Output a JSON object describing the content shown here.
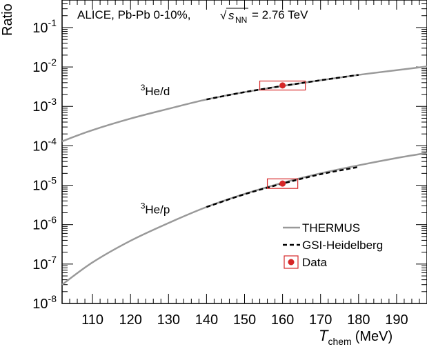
{
  "chart_data": {
    "type": "line",
    "header": {
      "experiment": "ALICE, Pb-Pb 0-10%,",
      "sqrt_symbol": "√",
      "s_letter": "s",
      "s_subscript": "NN",
      "energy": "= 2.76 TeV"
    },
    "xlabel": {
      "main": "T",
      "sub": "chem",
      "unit": "(MeV)"
    },
    "ylabel": "Ratio",
    "xlim": [
      102,
      198
    ],
    "ylim": [
      1e-08,
      0.5
    ],
    "yscale": "log",
    "x_ticks": [
      110,
      120,
      130,
      140,
      150,
      160,
      170,
      180,
      190
    ],
    "y_ticks": [
      {
        "exp": -8,
        "base": "10",
        "power": "-8"
      },
      {
        "exp": -7,
        "base": "10",
        "power": "-7"
      },
      {
        "exp": -6,
        "base": "10",
        "power": "-6"
      },
      {
        "exp": -5,
        "base": "10",
        "power": "-5"
      },
      {
        "exp": -4,
        "base": "10",
        "power": "-4"
      },
      {
        "exp": -3,
        "base": "10",
        "power": "-3"
      },
      {
        "exp": -2,
        "base": "10",
        "power": "-2"
      },
      {
        "exp": -1,
        "base": "10",
        "power": "-1"
      }
    ],
    "series": [
      {
        "name": "THERMUS",
        "style": "solid",
        "color": "#999999",
        "curves": [
          {
            "x": [
              102,
              110,
              120,
              130,
              140,
              150,
              160,
              170,
              180,
              190,
              198
            ],
            "y": [
              0.00013,
              0.00025,
              0.00049,
              0.00087,
              0.0015,
              0.0023,
              0.0033,
              0.0046,
              0.0063,
              0.0083,
              0.0103
            ]
          },
          {
            "x": [
              102,
              110,
              120,
              130,
              140,
              150,
              160,
              170,
              180,
              190,
              198
            ],
            "y": [
              3e-08,
              1.1e-07,
              3.9e-07,
              1.1e-06,
              2.8e-06,
              6e-06,
              1.15e-05,
              2e-05,
              3.2e-05,
              4.9e-05,
              6.6e-05
            ]
          }
        ]
      },
      {
        "name": "GSI-Heidelberg",
        "style": "dashed",
        "color": "#000000",
        "curves": [
          {
            "x": [
              140,
              150,
              160,
              170,
              180
            ],
            "y": [
              0.0015,
              0.0023,
              0.0033,
              0.0046,
              0.0063
            ]
          },
          {
            "x": [
              140,
              150,
              160,
              170,
              180
            ],
            "y": [
              2.8e-06,
              5.9e-06,
              1.1e-05,
              1.9e-05,
              2.9e-05
            ]
          }
        ]
      },
      {
        "name": "Data",
        "style": "marker",
        "color": "#d62728",
        "points": [
          {
            "x": 160,
            "y": 0.0034,
            "xlow": 154,
            "xhigh": 166,
            "ylow": 0.0026,
            "yhigh": 0.0044
          },
          {
            "x": 160,
            "y": 1.1e-05,
            "xlow": 156,
            "xhigh": 164,
            "ylow": 8.3e-06,
            "yhigh": 1.45e-05
          }
        ]
      }
    ],
    "annotations": [
      {
        "prefix": "3",
        "text": "He/d",
        "x": 121,
        "y": 0.0015
      },
      {
        "prefix": "3",
        "text": "He/p",
        "x": 121,
        "y": 1.5e-06
      }
    ],
    "legend": {
      "position": "bottom-right",
      "entries": [
        {
          "label": "THERMUS",
          "style": "solid",
          "color": "#999999"
        },
        {
          "label": "GSI-Heidelberg",
          "style": "dashed",
          "color": "#000000"
        },
        {
          "label": "Data",
          "style": "marker",
          "color": "#d62728"
        }
      ]
    },
    "grid": false
  }
}
